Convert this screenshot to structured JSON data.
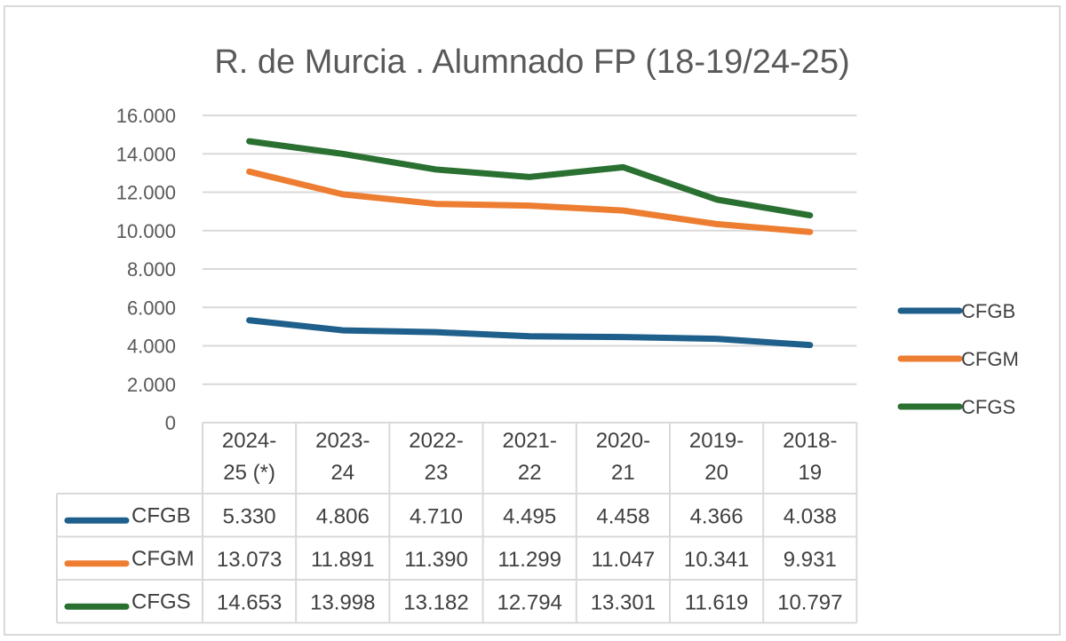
{
  "chart_data": {
    "type": "line",
    "title": "R. de Murcia . Alumnado FP (18-19/24-25)",
    "categories": [
      [
        "2024-",
        "25 (*)"
      ],
      [
        "2023-",
        "24"
      ],
      [
        "2022-",
        "23"
      ],
      [
        "2021-",
        "22"
      ],
      [
        "2020-",
        "21"
      ],
      [
        "2019-",
        "20"
      ],
      [
        "2018-",
        "19"
      ]
    ],
    "y_ticks": [
      "0",
      "2.000",
      "4.000",
      "6.000",
      "8.000",
      "10.000",
      "12.000",
      "14.000",
      "16.000"
    ],
    "ylim": [
      0,
      16000
    ],
    "grid": true,
    "legend_position": "right",
    "data_table": true,
    "series": [
      {
        "name": "CFGB",
        "color": "#1f5f8b",
        "values": [
          5330,
          4806,
          4710,
          4495,
          4458,
          4366,
          4038
        ],
        "labels": [
          "5.330",
          "4.806",
          "4.710",
          "4.495",
          "4.458",
          "4.366",
          "4.038"
        ]
      },
      {
        "name": "CFGM",
        "color": "#ed7d31",
        "values": [
          13073,
          11891,
          11390,
          11299,
          11047,
          10341,
          9931
        ],
        "labels": [
          "13.073",
          "11.891",
          "11.390",
          "11.299",
          "11.047",
          "10.341",
          "9.931"
        ]
      },
      {
        "name": "CFGS",
        "color": "#2a7031",
        "values": [
          14653,
          13998,
          13182,
          12794,
          13301,
          11619,
          10797
        ],
        "labels": [
          "14.653",
          "13.998",
          "13.182",
          "12.794",
          "13.301",
          "11.619",
          "10.797"
        ]
      }
    ]
  }
}
